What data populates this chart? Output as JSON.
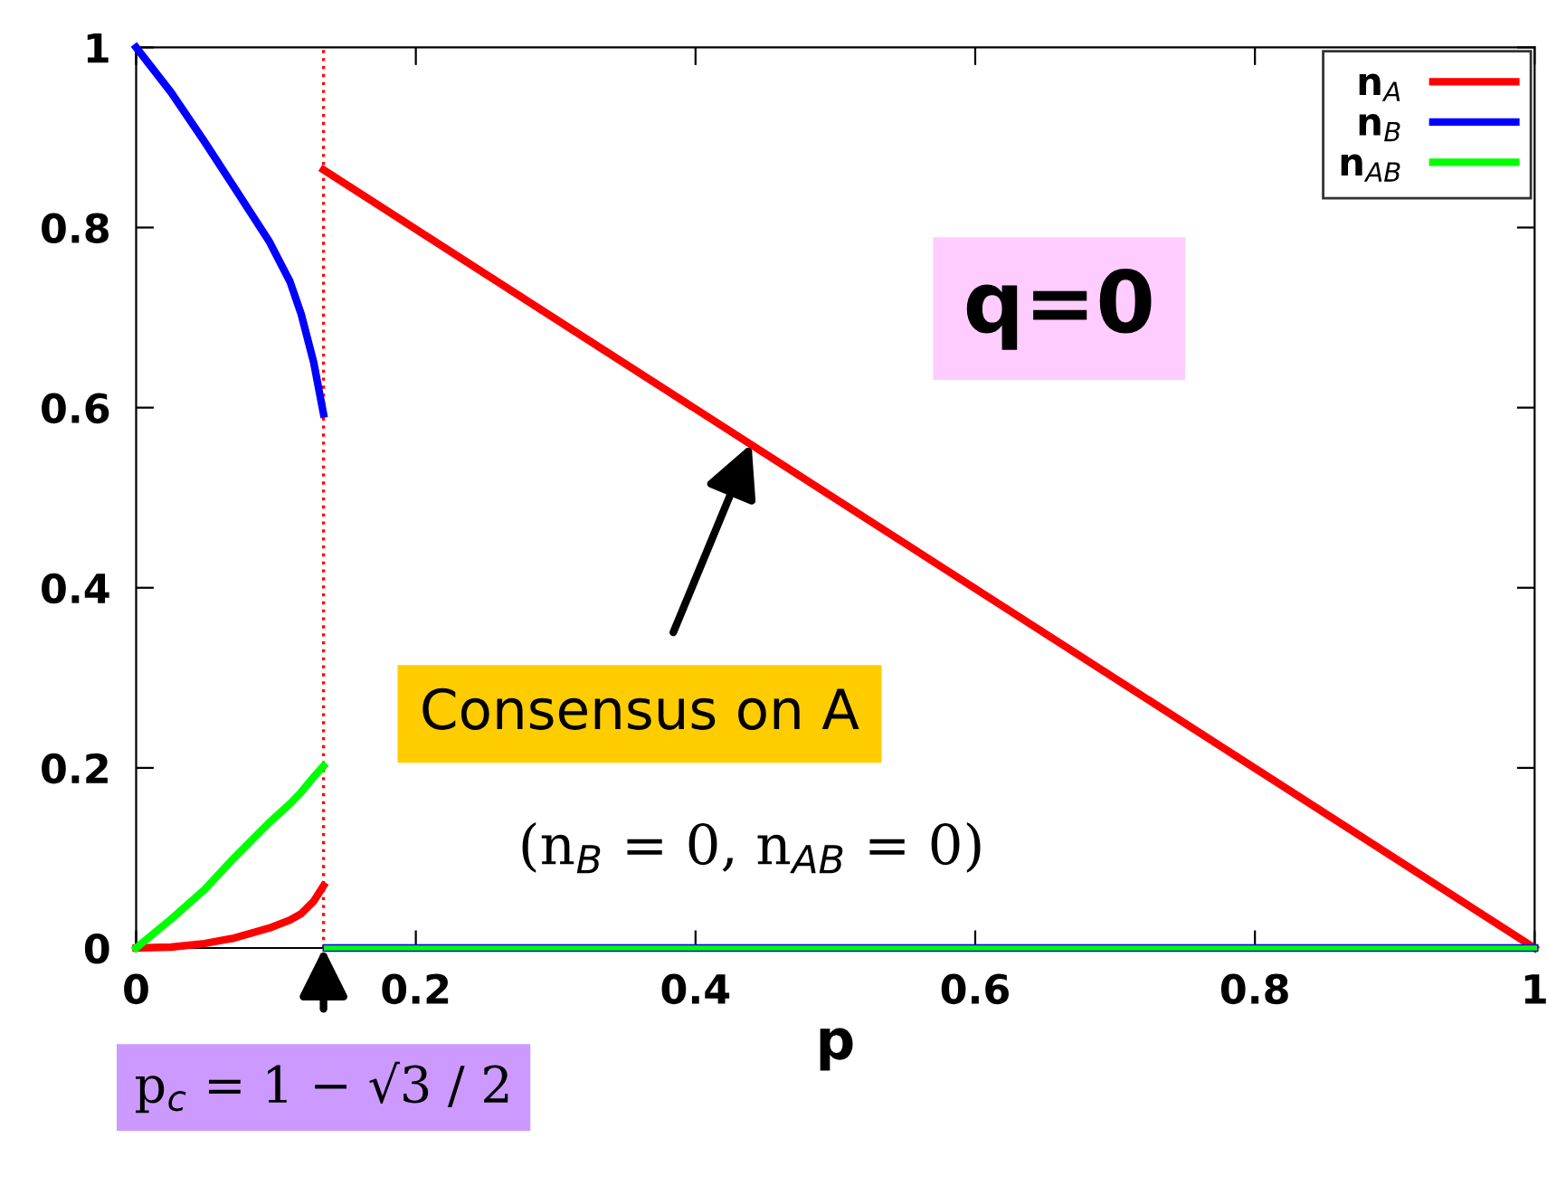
{
  "chart_data": {
    "type": "line",
    "xlabel": "p",
    "xlim": [
      0,
      1
    ],
    "ylim": [
      0,
      1
    ],
    "xticks": [
      0,
      0.2,
      0.4,
      0.6,
      0.8,
      1
    ],
    "yticks": [
      0,
      0.2,
      0.4,
      0.6,
      0.8,
      1
    ],
    "series": [
      {
        "name": "n$_{A}$",
        "color": "#ff0000",
        "x": [
          0,
          0.025,
          0.049,
          0.07,
          0.095,
          0.11,
          0.118,
          0.127,
          0.134
        ],
        "values": [
          0,
          0.001,
          0.005,
          0.011,
          0.022,
          0.031,
          0.038,
          0.052,
          0.069
        ]
      },
      {
        "name": "n$_{B}$",
        "color": "#0000ff",
        "x": [
          0,
          0.025,
          0.049,
          0.07,
          0.095,
          0.11,
          0.118,
          0.127,
          0.134
        ],
        "values": [
          1,
          0.95,
          0.895,
          0.845,
          0.785,
          0.74,
          0.704,
          0.65,
          0.593
        ]
      },
      {
        "name": "n$_{AB}$",
        "color": "#00ff00",
        "x": [
          0,
          0.025,
          0.049,
          0.07,
          0.095,
          0.11,
          0.118,
          0.127,
          0.134
        ],
        "values": [
          0,
          0.032,
          0.065,
          0.1,
          0.139,
          0.16,
          0.173,
          0.19,
          0.202
        ]
      },
      {
        "color": "#ff0000",
        "x": [
          0.134,
          1
        ],
        "values": [
          0.864,
          0
        ]
      },
      {
        "color": "#0000ff",
        "x": [
          0.136,
          1
        ],
        "values": [
          0,
          0
        ]
      },
      {
        "color": "#00ff00",
        "x": [
          0.136,
          1
        ],
        "values": [
          0,
          0
        ]
      }
    ],
    "ref_lines": [
      {
        "axis": "x",
        "value": 0.134,
        "color": "#ff0000",
        "line_style": "dotted"
      }
    ],
    "annotations": [
      "q=0",
      {
        "text": "Consensus on A",
        "x": 0.44,
        "y": 0.56
      },
      "(n$_{B}$ = 0, n$_{AB}$ = 0)",
      {
        "text": "p$_{c}$ = 1 − √3 / 2",
        "x": 0.134,
        "y": 0
      }
    ],
    "legend": "top right",
    "grid": false,
    "marker": "none",
    "line_style": "solid"
  }
}
